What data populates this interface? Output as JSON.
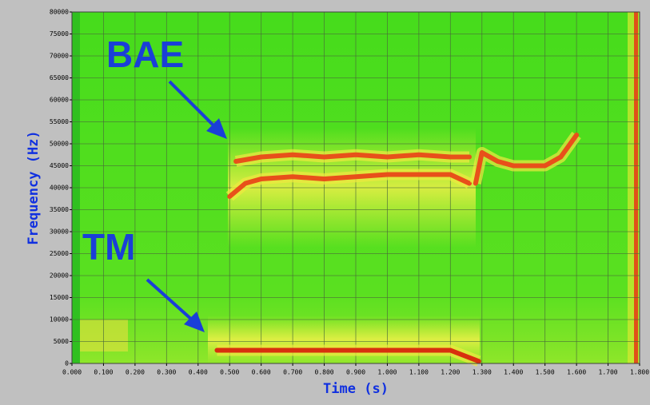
{
  "chart_data": {
    "type": "spectrogram",
    "xlabel": "Time (s)",
    "ylabel": "Frequency (Hz)",
    "annotations": [
      "BAE",
      "TM"
    ],
    "xlim": [
      0,
      1.8
    ],
    "ylim": [
      0,
      80000
    ],
    "grid": true,
    "xticks": [
      {
        "value": 0,
        "label": "0.000"
      },
      {
        "value": 0.1,
        "label": "0.100"
      },
      {
        "value": 0.2,
        "label": "0.200"
      },
      {
        "value": 0.3,
        "label": "0.300"
      },
      {
        "value": 0.4,
        "label": "0.400"
      },
      {
        "value": 0.5,
        "label": "0.500"
      },
      {
        "value": 0.6,
        "label": "0.600"
      },
      {
        "value": 0.7,
        "label": "0.700"
      },
      {
        "value": 0.8,
        "label": "0.800"
      },
      {
        "value": 0.9,
        "label": "0.900"
      },
      {
        "value": 1.0,
        "label": "1.000"
      },
      {
        "value": 1.1,
        "label": "1.100"
      },
      {
        "value": 1.2,
        "label": "1.200"
      },
      {
        "value": 1.3,
        "label": "1.300"
      },
      {
        "value": 1.4,
        "label": "1.400"
      },
      {
        "value": 1.5,
        "label": "1.500"
      },
      {
        "value": 1.6,
        "label": "1.600"
      },
      {
        "value": 1.7,
        "label": "1.700"
      },
      {
        "value": 1.8,
        "label": "1.800"
      }
    ],
    "yticks": [
      0,
      5000,
      10000,
      15000,
      20000,
      25000,
      30000,
      35000,
      40000,
      45000,
      50000,
      55000,
      60000,
      65000,
      70000,
      75000,
      80000
    ],
    "series": [
      {
        "color": "#e8501a",
        "x": [
          0.52,
          0.6,
          0.7,
          0.8,
          0.9,
          1.0,
          1.1,
          1.2,
          1.26
        ],
        "values": [
          46000,
          47000,
          47500,
          47000,
          47500,
          47000,
          47500,
          47000,
          47000
        ]
      },
      {
        "color": "#e8501a",
        "x": [
          0.5,
          0.55,
          0.6,
          0.7,
          0.8,
          0.9,
          1.0,
          1.1,
          1.2,
          1.26
        ],
        "values": [
          38000,
          41000,
          42000,
          42500,
          42000,
          42500,
          43000,
          43000,
          43000,
          41000
        ]
      },
      {
        "color": "#e8501a",
        "x": [
          1.28,
          1.3,
          1.35,
          1.4,
          1.45,
          1.5,
          1.55,
          1.6
        ],
        "values": [
          41000,
          48000,
          46000,
          45000,
          45000,
          45000,
          47000,
          52000
        ]
      },
      {
        "color": "#d8300e",
        "x": [
          0.46,
          0.5,
          0.6,
          0.8,
          1.0,
          1.2,
          1.29
        ],
        "values": [
          3000,
          3000,
          3000,
          3000,
          3000,
          3000,
          500
        ]
      }
    ]
  }
}
